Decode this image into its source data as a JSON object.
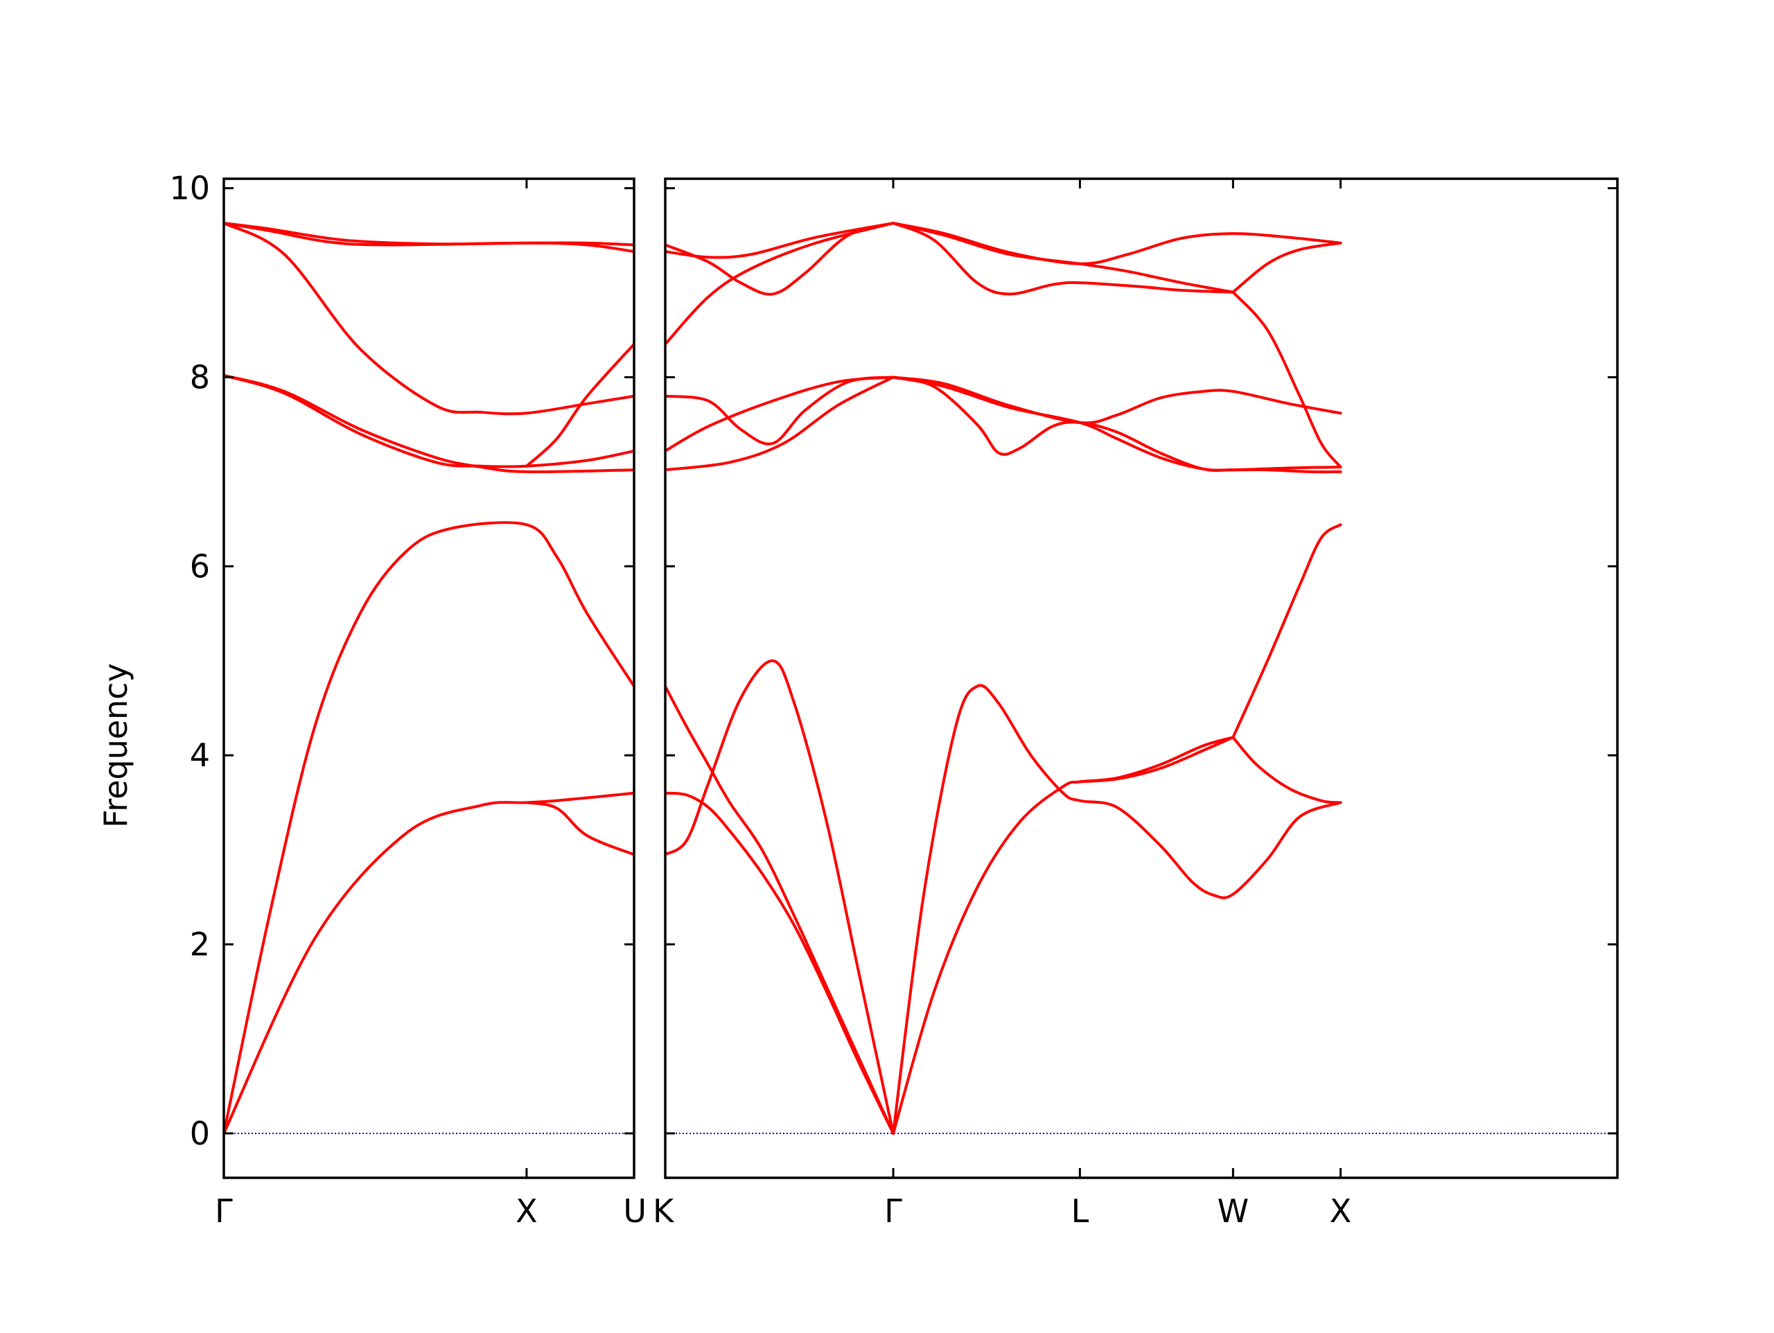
{
  "chart_data": {
    "type": "line",
    "ylabel": "Frequency",
    "ylim": [
      -0.47,
      10.1
    ],
    "yticks": [
      0,
      2,
      4,
      6,
      8,
      10
    ],
    "line_color": "#ff0000",
    "zero_line_color": "#0000cc",
    "grid": false,
    "segments": [
      {
        "id": "gamma-x-u",
        "xlim": [
          0,
          1.355
        ],
        "ticks": [
          {
            "pos": 0,
            "label": "Γ"
          },
          {
            "pos": 1.0,
            "label": "X"
          },
          {
            "pos": 1.355,
            "label": "U"
          }
        ],
        "bands": [
          [
            [
              0,
              0
            ],
            [
              0.3,
              2.06
            ],
            [
              0.6,
              3.17
            ],
            [
              0.85,
              3.47
            ],
            [
              1.0,
              3.5
            ],
            [
              1.1,
              3.52
            ],
            [
              1.355,
              3.6
            ]
          ],
          [
            [
              0,
              0
            ],
            [
              0.15,
              2.3
            ],
            [
              0.3,
              4.3
            ],
            [
              0.45,
              5.5
            ],
            [
              0.6,
              6.15
            ],
            [
              0.75,
              6.4
            ],
            [
              1.0,
              6.44
            ],
            [
              1.1,
              6.1
            ],
            [
              1.2,
              5.5
            ],
            [
              1.355,
              4.73
            ]
          ],
          [
            [
              1.0,
              3.5
            ],
            [
              1.1,
              3.44
            ],
            [
              1.2,
              3.15
            ],
            [
              1.355,
              2.95
            ]
          ],
          [
            [
              0,
              8.02
            ],
            [
              0.2,
              7.85
            ],
            [
              0.45,
              7.45
            ],
            [
              0.7,
              7.15
            ],
            [
              0.85,
              7.05
            ],
            [
              1.0,
              7.0
            ],
            [
              1.355,
              7.02
            ]
          ],
          [
            [
              0,
              8.02
            ],
            [
              0.2,
              7.83
            ],
            [
              0.45,
              7.4
            ],
            [
              0.7,
              7.1
            ],
            [
              0.85,
              7.06
            ],
            [
              1.0,
              7.06
            ],
            [
              1.2,
              7.12
            ],
            [
              1.355,
              7.22
            ]
          ],
          [
            [
              1.0,
              7.06
            ],
            [
              1.1,
              7.35
            ],
            [
              1.2,
              7.8
            ],
            [
              1.355,
              8.35
            ]
          ],
          [
            [
              0,
              9.63
            ],
            [
              0.2,
              9.3
            ],
            [
              0.45,
              8.3
            ],
            [
              0.7,
              7.7
            ],
            [
              0.85,
              7.63
            ],
            [
              1.0,
              7.62
            ],
            [
              1.2,
              7.72
            ],
            [
              1.355,
              7.8
            ]
          ],
          [
            [
              0,
              9.63
            ],
            [
              0.15,
              9.55
            ],
            [
              0.35,
              9.43
            ],
            [
              0.55,
              9.4
            ],
            [
              1.0,
              9.42
            ],
            [
              1.2,
              9.4
            ],
            [
              1.355,
              9.33
            ]
          ],
          [
            [
              0,
              9.63
            ],
            [
              0.15,
              9.57
            ],
            [
              0.4,
              9.45
            ],
            [
              0.7,
              9.41
            ],
            [
              1.0,
              9.42
            ],
            [
              1.2,
              9.42
            ],
            [
              1.355,
              9.4
            ]
          ]
        ]
      },
      {
        "id": "k-gamma-l-w-x",
        "xlim": [
          0,
          4.427
        ],
        "ticks": [
          {
            "pos": 0,
            "label": "K"
          },
          {
            "pos": 1.06,
            "label": "Γ"
          },
          {
            "pos": 1.928,
            "label": "L"
          },
          {
            "pos": 2.64,
            "label": "W"
          },
          {
            "pos": 3.14,
            "label": "X"
          }
        ],
        "bands": [
          [
            [
              0,
              3.6
            ],
            [
              0.1,
              3.58
            ],
            [
              0.2,
              3.45
            ],
            [
              0.3,
              3.2
            ],
            [
              0.45,
              2.75
            ],
            [
              0.6,
              2.2
            ],
            [
              0.75,
              1.5
            ],
            [
              0.9,
              0.75
            ],
            [
              1.06,
              0
            ]
          ],
          [
            [
              0,
              4.73
            ],
            [
              0.1,
              4.3
            ],
            [
              0.2,
              3.9
            ],
            [
              0.3,
              3.5
            ],
            [
              0.45,
              3.0
            ],
            [
              0.6,
              2.3
            ],
            [
              0.75,
              1.55
            ],
            [
              0.9,
              0.8
            ],
            [
              1.06,
              0
            ]
          ],
          [
            [
              0,
              2.95
            ],
            [
              0.1,
              3.1
            ],
            [
              0.2,
              3.7
            ],
            [
              0.35,
              4.6
            ],
            [
              0.5,
              5.0
            ],
            [
              0.6,
              4.55
            ],
            [
              0.75,
              3.3
            ],
            [
              0.9,
              1.7
            ],
            [
              1.06,
              0
            ]
          ],
          [
            [
              1.06,
              0
            ],
            [
              1.25,
              1.5
            ],
            [
              1.45,
              2.6
            ],
            [
              1.65,
              3.3
            ],
            [
              1.85,
              3.67
            ],
            [
              1.928,
              3.72
            ],
            [
              2.1,
              3.76
            ],
            [
              2.3,
              3.9
            ],
            [
              2.5,
              4.1
            ],
            [
              2.64,
              4.19
            ]
          ],
          [
            [
              1.06,
              0
            ],
            [
              1.2,
              2.5
            ],
            [
              1.35,
              4.3
            ],
            [
              1.45,
              4.73
            ],
            [
              1.55,
              4.55
            ],
            [
              1.7,
              4.0
            ],
            [
              1.85,
              3.6
            ],
            [
              1.928,
              3.52
            ],
            [
              2.1,
              3.45
            ],
            [
              2.3,
              3.05
            ],
            [
              2.45,
              2.66
            ],
            [
              2.55,
              2.52
            ],
            [
              2.64,
              2.53
            ],
            [
              2.8,
              2.9
            ],
            [
              2.95,
              3.35
            ],
            [
              3.14,
              3.5
            ]
          ],
          [
            [
              1.928,
              3.72
            ],
            [
              2.1,
              3.75
            ],
            [
              2.3,
              3.86
            ],
            [
              2.5,
              4.05
            ],
            [
              2.64,
              4.19
            ]
          ],
          [
            [
              2.64,
              4.19
            ],
            [
              2.75,
              3.9
            ],
            [
              2.9,
              3.65
            ],
            [
              3.05,
              3.52
            ],
            [
              3.14,
              3.5
            ]
          ],
          [
            [
              2.64,
              4.19
            ],
            [
              2.8,
              5.0
            ],
            [
              2.95,
              5.8
            ],
            [
              3.05,
              6.3
            ],
            [
              3.14,
              6.44
            ]
          ],
          [
            [
              0,
              7.02
            ],
            [
              0.3,
              7.1
            ],
            [
              0.55,
              7.3
            ],
            [
              0.8,
              7.7
            ],
            [
              1.06,
              8.0
            ]
          ],
          [
            [
              0,
              7.22
            ],
            [
              0.2,
              7.48
            ],
            [
              0.5,
              7.75
            ],
            [
              0.8,
              7.95
            ],
            [
              1.06,
              8.0
            ]
          ],
          [
            [
              0,
              7.8
            ],
            [
              0.2,
              7.75
            ],
            [
              0.35,
              7.45
            ],
            [
              0.5,
              7.3
            ],
            [
              0.65,
              7.65
            ],
            [
              0.85,
              7.95
            ],
            [
              1.06,
              8.0
            ]
          ],
          [
            [
              1.06,
              8.0
            ],
            [
              1.25,
              7.9
            ],
            [
              1.45,
              7.5
            ],
            [
              1.55,
              7.2
            ],
            [
              1.65,
              7.25
            ],
            [
              1.8,
              7.48
            ],
            [
              1.928,
              7.52
            ],
            [
              2.1,
              7.42
            ],
            [
              2.3,
              7.2
            ],
            [
              2.5,
              7.03
            ],
            [
              2.64,
              7.02
            ],
            [
              2.8,
              7.02
            ],
            [
              3.0,
              7.0
            ],
            [
              3.14,
              7.0
            ]
          ],
          [
            [
              1.06,
              8.0
            ],
            [
              1.3,
              7.9
            ],
            [
              1.6,
              7.68
            ],
            [
              1.928,
              7.52
            ],
            [
              2.1,
              7.35
            ],
            [
              2.3,
              7.15
            ],
            [
              2.5,
              7.03
            ],
            [
              2.64,
              7.02
            ],
            [
              2.9,
              7.04
            ],
            [
              3.14,
              7.05
            ]
          ],
          [
            [
              1.06,
              8.0
            ],
            [
              1.3,
              7.93
            ],
            [
              1.6,
              7.7
            ],
            [
              1.928,
              7.52
            ],
            [
              2.1,
              7.6
            ],
            [
              2.3,
              7.78
            ],
            [
              2.5,
              7.85
            ],
            [
              2.64,
              7.85
            ],
            [
              2.9,
              7.72
            ],
            [
              3.14,
              7.62
            ]
          ],
          [
            [
              0,
              8.35
            ],
            [
              0.2,
              8.85
            ],
            [
              0.4,
              9.15
            ],
            [
              0.7,
              9.42
            ],
            [
              1.06,
              9.63
            ]
          ],
          [
            [
              0,
              9.33
            ],
            [
              0.2,
              9.27
            ],
            [
              0.4,
              9.3
            ],
            [
              0.7,
              9.48
            ],
            [
              1.06,
              9.63
            ]
          ],
          [
            [
              0,
              9.4
            ],
            [
              0.2,
              9.22
            ],
            [
              0.35,
              9.0
            ],
            [
              0.5,
              8.88
            ],
            [
              0.65,
              9.1
            ],
            [
              0.85,
              9.5
            ],
            [
              1.06,
              9.63
            ]
          ],
          [
            [
              1.06,
              9.63
            ],
            [
              1.25,
              9.45
            ],
            [
              1.45,
              9.0
            ],
            [
              1.6,
              8.88
            ],
            [
              1.8,
              8.98
            ],
            [
              1.928,
              9.0
            ],
            [
              2.2,
              8.96
            ],
            [
              2.4,
              8.92
            ],
            [
              2.64,
              8.9
            ]
          ],
          [
            [
              1.06,
              9.63
            ],
            [
              1.3,
              9.5
            ],
            [
              1.6,
              9.3
            ],
            [
              1.928,
              9.2
            ],
            [
              2.15,
              9.12
            ],
            [
              2.4,
              9.0
            ],
            [
              2.64,
              8.9
            ]
          ],
          [
            [
              1.06,
              9.63
            ],
            [
              1.3,
              9.52
            ],
            [
              1.6,
              9.32
            ],
            [
              1.928,
              9.2
            ],
            [
              2.15,
              9.3
            ],
            [
              2.4,
              9.47
            ],
            [
              2.64,
              9.52
            ],
            [
              2.9,
              9.48
            ],
            [
              3.14,
              9.42
            ]
          ],
          [
            [
              2.64,
              8.9
            ],
            [
              2.8,
              9.2
            ],
            [
              2.95,
              9.35
            ],
            [
              3.14,
              9.42
            ]
          ],
          [
            [
              2.64,
              8.9
            ],
            [
              2.8,
              8.5
            ],
            [
              2.95,
              7.8
            ],
            [
              3.05,
              7.3
            ],
            [
              3.14,
              7.05
            ]
          ]
        ]
      }
    ]
  }
}
